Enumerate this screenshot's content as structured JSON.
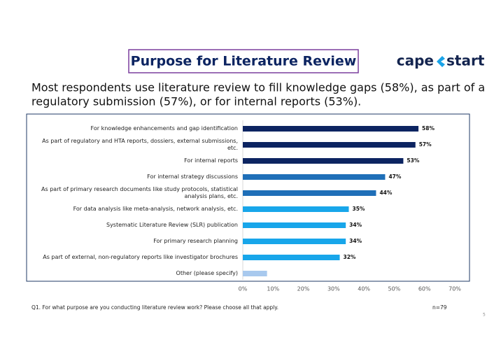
{
  "header": {
    "title": "Purpose for Literature Review",
    "logo": {
      "left": "cape",
      "right": "start"
    },
    "subtitle_lines": [
      "Most respondents use literature review to fill knowledge gaps (58%), as part of a",
      "regulatory submission (57%), or for internal reports (53%)."
    ]
  },
  "chart_data": {
    "type": "bar",
    "orientation": "horizontal",
    "categories": [
      "For knowledge enhancements and gap identification",
      "As part of regulatory and HTA reports, dossiers, external submissions, etc.",
      "For internal reports",
      "For internal strategy discussions",
      "As part of primary research documents like study protocols, statistical analysis plans, etc.",
      "For data analysis like meta-analysis, network analysis, etc.",
      "Systematic Literature Review (SLR) publication",
      "For primary research planning",
      "As part of external, non-regulatory reports like investigator brochures",
      "Other (please specify)"
    ],
    "values": [
      58,
      57,
      53,
      47,
      44,
      35,
      34,
      34,
      32,
      8
    ],
    "value_labels": [
      "58%",
      "57%",
      "53%",
      "47%",
      "44%",
      "35%",
      "34%",
      "34%",
      "32%",
      null
    ],
    "colors": [
      "#0c2461",
      "#0c2461",
      "#0c2461",
      "#1f6fb8",
      "#1f6fb8",
      "#18a6ea",
      "#18a6ea",
      "#18a6ea",
      "#18a6ea",
      "#a8c9ee"
    ],
    "xlim": [
      0,
      70
    ],
    "xticks": [
      {
        "value": 0,
        "label": "0%"
      },
      {
        "value": 10,
        "label": "10%"
      },
      {
        "value": 20,
        "label": "20%"
      },
      {
        "value": 30,
        "label": "30%"
      },
      {
        "value": 40,
        "label": "40%"
      },
      {
        "value": 50,
        "label": "50%"
      },
      {
        "value": 60,
        "label": "60%"
      },
      {
        "value": 70,
        "label": "70%"
      }
    ]
  },
  "footer": {
    "question": "Q1. For what purpose are you conducting literature review work? Please choose all that apply.",
    "n": "n=79",
    "page": "5"
  }
}
